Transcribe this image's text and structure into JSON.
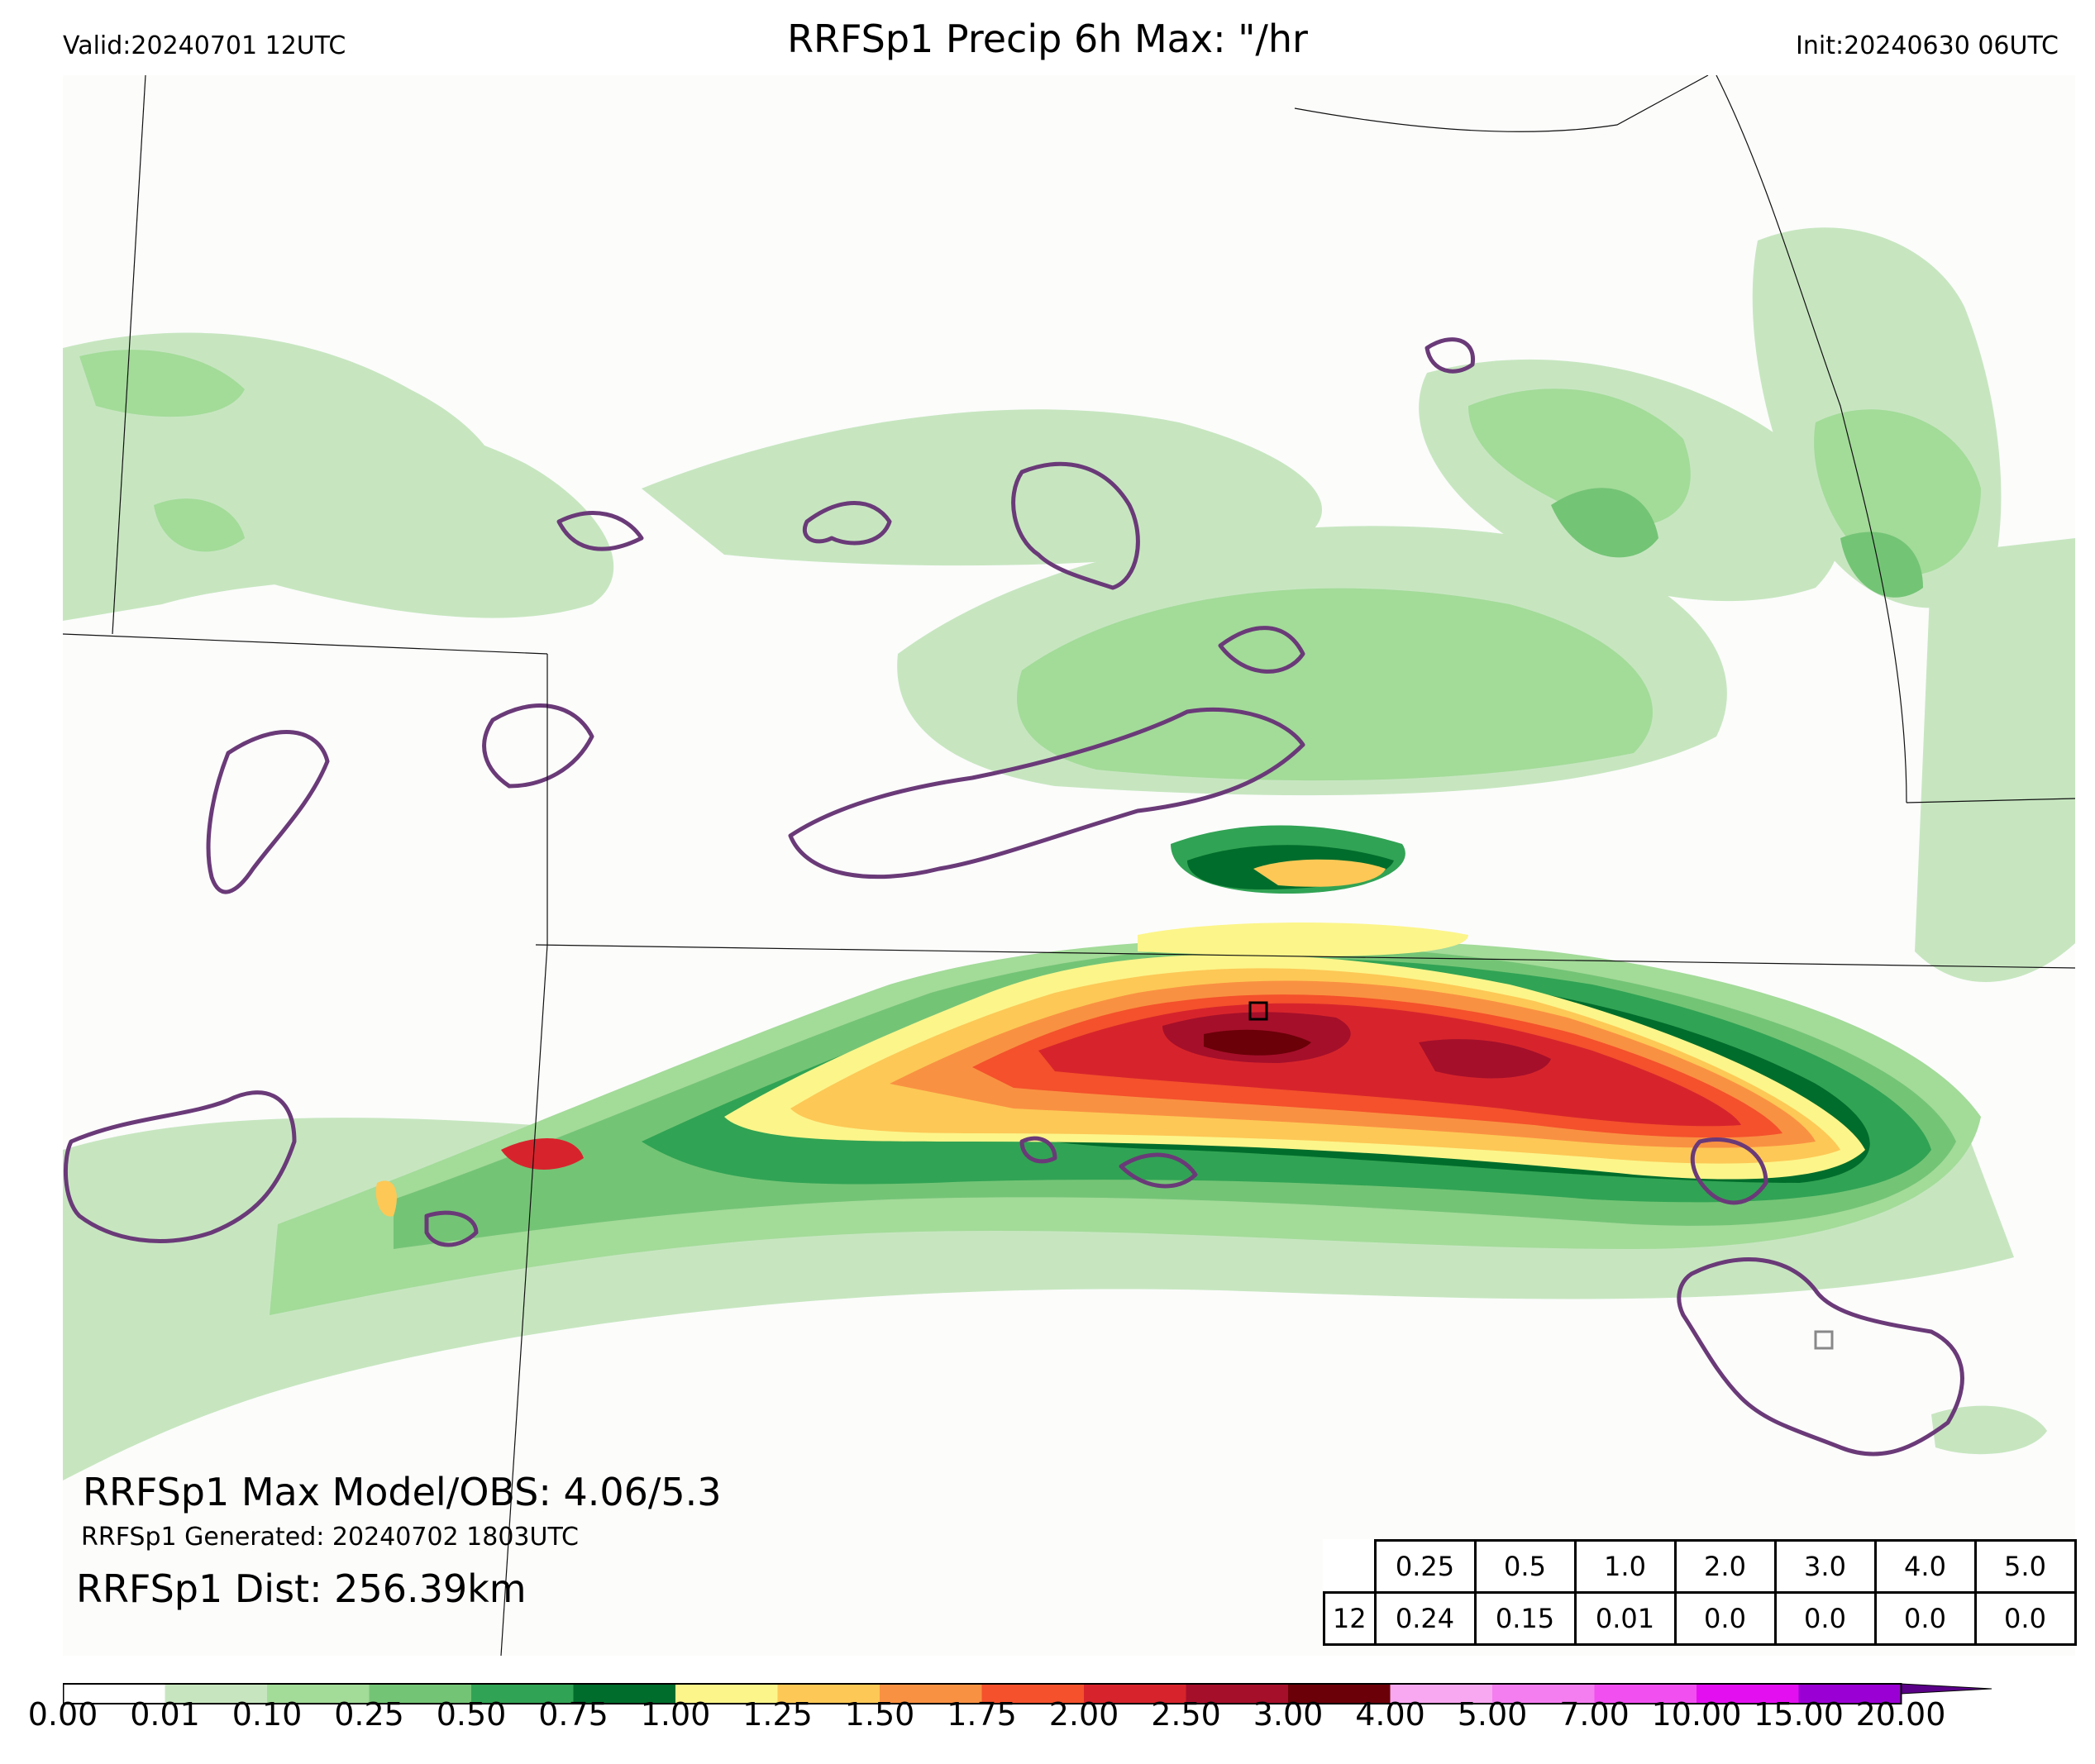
{
  "header": {
    "valid": "Valid:20240701 12UTC",
    "title": "RRFSp1 Precip 6h Max: \"/hr",
    "init": "Init:20240630 06UTC"
  },
  "annotations": {
    "max_line": "RRFSp1 Max Model/OBS: 4.06/5.3",
    "generated_line": "RRFSp1 Generated: 20240702 1803UTC",
    "dist_line": "RRFSp1 Dist: 256.39km"
  },
  "stats_table": {
    "thresholds": [
      "0.25",
      "0.5",
      "1.0",
      "2.0",
      "3.0",
      "4.0",
      "5.0"
    ],
    "row_label": "12",
    "values": [
      "0.24",
      "0.15",
      "0.01",
      "0.0",
      "0.0",
      "0.0",
      "0.0"
    ]
  },
  "colorbar": {
    "ticks": [
      "0.00",
      "0.01",
      "0.10",
      "0.25",
      "0.50",
      "0.75",
      "1.00",
      "1.25",
      "1.50",
      "1.75",
      "2.00",
      "2.50",
      "3.00",
      "4.00",
      "5.00",
      "7.00",
      "10.00",
      "15.00",
      "20.00"
    ],
    "colors": [
      "#ffffff",
      "#c7e6c0",
      "#a3db99",
      "#74c476",
      "#31a354",
      "#006d2c",
      "#fcf58a",
      "#fdc856",
      "#f99142",
      "#f4512c",
      "#d7242c",
      "#a50f2a",
      "#6b0008",
      "#f7a8f0",
      "#f47ef0",
      "#f14ff0",
      "#e40ff0",
      "#9a00d4",
      "#5a0088"
    ]
  },
  "colors": {
    "obs_contour": "#6a3a78",
    "map_bg": "#fcfcfb"
  }
}
